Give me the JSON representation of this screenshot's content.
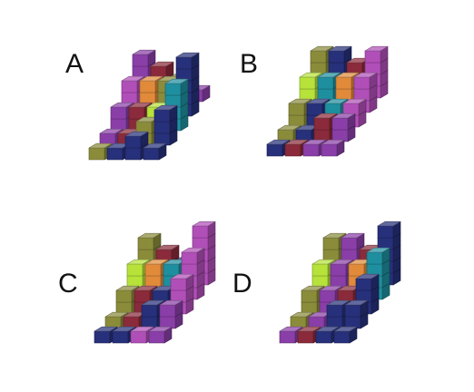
{
  "puzzle": {
    "options": [
      {
        "label": "A",
        "stacks": [
          {
            "row": 0,
            "col": 0,
            "h": 4,
            "color": "purple"
          },
          {
            "row": 0,
            "col": 1,
            "h": 3,
            "color": "maroon"
          },
          {
            "row": 0,
            "col": 2,
            "h": 2,
            "color": "olive"
          },
          {
            "row": 0,
            "col": 3,
            "h": 1,
            "color": "purple"
          },
          {
            "row": 1,
            "col": 0,
            "h": 3,
            "color": "magenta"
          },
          {
            "row": 1,
            "col": 1,
            "h": 3,
            "color": "orange"
          },
          {
            "row": 1,
            "col": 2,
            "h": 3,
            "color": "olive"
          },
          {
            "row": 1,
            "col": 3,
            "h": 5,
            "color": "navy"
          },
          {
            "row": 2,
            "col": 0,
            "h": 2,
            "color": "purple"
          },
          {
            "row": 2,
            "col": 1,
            "h": 2,
            "color": "maroon"
          },
          {
            "row": 2,
            "col": 2,
            "h": 2,
            "color": "lime"
          },
          {
            "row": 2,
            "col": 3,
            "h": 4,
            "color": "teal"
          },
          {
            "row": 3,
            "col": 0,
            "h": 1,
            "color": "purple"
          },
          {
            "row": 3,
            "col": 1,
            "h": 1,
            "color": "maroon"
          },
          {
            "row": 3,
            "col": 2,
            "h": 2,
            "color": "olive"
          },
          {
            "row": 3,
            "col": 3,
            "h": 3,
            "color": "navy"
          },
          {
            "row": 4,
            "col": 0,
            "h": 1,
            "color": "olive"
          },
          {
            "row": 4,
            "col": 1,
            "h": 1,
            "color": "navy"
          },
          {
            "row": 4,
            "col": 2,
            "h": 2,
            "color": "navy"
          },
          {
            "row": 4,
            "col": 3,
            "h": 1,
            "color": "navy"
          }
        ]
      },
      {
        "label": "B",
        "stacks": [
          {
            "row": 0,
            "col": 0,
            "h": 4,
            "color": "olive"
          },
          {
            "row": 0,
            "col": 1,
            "h": 4,
            "color": "navy"
          },
          {
            "row": 0,
            "col": 2,
            "h": 3,
            "color": "maroon"
          },
          {
            "row": 0,
            "col": 3,
            "h": 4,
            "color": "magenta"
          },
          {
            "row": 1,
            "col": 0,
            "h": 3,
            "color": "lime"
          },
          {
            "row": 1,
            "col": 1,
            "h": 3,
            "color": "teal"
          },
          {
            "row": 1,
            "col": 2,
            "h": 3,
            "color": "orange"
          },
          {
            "row": 1,
            "col": 3,
            "h": 3,
            "color": "magenta"
          },
          {
            "row": 2,
            "col": 0,
            "h": 2,
            "color": "olive"
          },
          {
            "row": 2,
            "col": 1,
            "h": 2,
            "color": "navy"
          },
          {
            "row": 2,
            "col": 2,
            "h": 2,
            "color": "teal"
          },
          {
            "row": 2,
            "col": 3,
            "h": 2,
            "color": "magenta"
          },
          {
            "row": 3,
            "col": 0,
            "h": 1,
            "color": "olive"
          },
          {
            "row": 3,
            "col": 1,
            "h": 1,
            "color": "navy"
          },
          {
            "row": 3,
            "col": 2,
            "h": 2,
            "color": "maroon"
          },
          {
            "row": 3,
            "col": 3,
            "h": 2,
            "color": "purple"
          },
          {
            "row": 4,
            "col": 0,
            "h": 1,
            "color": "navy"
          },
          {
            "row": 4,
            "col": 1,
            "h": 1,
            "color": "maroon"
          },
          {
            "row": 4,
            "col": 2,
            "h": 1,
            "color": "purple"
          },
          {
            "row": 4,
            "col": 3,
            "h": 1,
            "color": "purple"
          }
        ]
      },
      {
        "label": "C",
        "stacks": [
          {
            "row": 0,
            "col": 0,
            "h": 4,
            "color": "olive"
          },
          {
            "row": 0,
            "col": 1,
            "h": 3,
            "color": "maroon"
          },
          {
            "row": 0,
            "col": 2,
            "h": 2,
            "color": "navy"
          },
          {
            "row": 0,
            "col": 3,
            "h": 5,
            "color": "magenta"
          },
          {
            "row": 1,
            "col": 0,
            "h": 3,
            "color": "lime"
          },
          {
            "row": 1,
            "col": 1,
            "h": 3,
            "color": "orange"
          },
          {
            "row": 1,
            "col": 2,
            "h": 3,
            "color": "teal"
          },
          {
            "row": 1,
            "col": 3,
            "h": 4,
            "color": "magenta"
          },
          {
            "row": 2,
            "col": 0,
            "h": 2,
            "color": "olive"
          },
          {
            "row": 2,
            "col": 1,
            "h": 2,
            "color": "maroon"
          },
          {
            "row": 2,
            "col": 2,
            "h": 2,
            "color": "navy"
          },
          {
            "row": 2,
            "col": 3,
            "h": 3,
            "color": "magenta"
          },
          {
            "row": 3,
            "col": 0,
            "h": 1,
            "color": "olive"
          },
          {
            "row": 3,
            "col": 1,
            "h": 1,
            "color": "maroon"
          },
          {
            "row": 3,
            "col": 2,
            "h": 2,
            "color": "navy"
          },
          {
            "row": 3,
            "col": 3,
            "h": 2,
            "color": "purple"
          },
          {
            "row": 4,
            "col": 0,
            "h": 1,
            "color": "navy"
          },
          {
            "row": 4,
            "col": 1,
            "h": 1,
            "color": "navy"
          },
          {
            "row": 4,
            "col": 2,
            "h": 1,
            "color": "magenta"
          },
          {
            "row": 4,
            "col": 3,
            "h": 1,
            "color": "purple"
          }
        ]
      },
      {
        "label": "D",
        "stacks": [
          {
            "row": 0,
            "col": 0,
            "h": 4,
            "color": "olive"
          },
          {
            "row": 0,
            "col": 1,
            "h": 4,
            "color": "purple"
          },
          {
            "row": 0,
            "col": 2,
            "h": 3,
            "color": "maroon"
          },
          {
            "row": 0,
            "col": 3,
            "h": 5,
            "color": "navy"
          },
          {
            "row": 1,
            "col": 0,
            "h": 3,
            "color": "lime"
          },
          {
            "row": 1,
            "col": 1,
            "h": 3,
            "color": "purple"
          },
          {
            "row": 1,
            "col": 2,
            "h": 3,
            "color": "orange"
          },
          {
            "row": 1,
            "col": 3,
            "h": 4,
            "color": "teal"
          },
          {
            "row": 2,
            "col": 0,
            "h": 2,
            "color": "olive"
          },
          {
            "row": 2,
            "col": 1,
            "h": 2,
            "color": "purple"
          },
          {
            "row": 2,
            "col": 2,
            "h": 2,
            "color": "maroon"
          },
          {
            "row": 2,
            "col": 3,
            "h": 3,
            "color": "navy"
          },
          {
            "row": 3,
            "col": 0,
            "h": 1,
            "color": "olive"
          },
          {
            "row": 3,
            "col": 1,
            "h": 1,
            "color": "purple"
          },
          {
            "row": 3,
            "col": 2,
            "h": 2,
            "color": "navy"
          },
          {
            "row": 3,
            "col": 3,
            "h": 2,
            "color": "navy"
          },
          {
            "row": 4,
            "col": 0,
            "h": 1,
            "color": "purple"
          },
          {
            "row": 4,
            "col": 1,
            "h": 1,
            "color": "maroon"
          },
          {
            "row": 4,
            "col": 2,
            "h": 1,
            "color": "navy"
          },
          {
            "row": 4,
            "col": 3,
            "h": 1,
            "color": "navy"
          }
        ]
      }
    ]
  },
  "palette": {
    "purple": "#8a3ea8",
    "magenta": "#b14fb8",
    "maroon": "#8a2a3a",
    "olive": "#8b8c3a",
    "lime": "#b6e23a",
    "orange": "#e08a3a",
    "teal": "#1e8f9f",
    "navy": "#27307a"
  }
}
